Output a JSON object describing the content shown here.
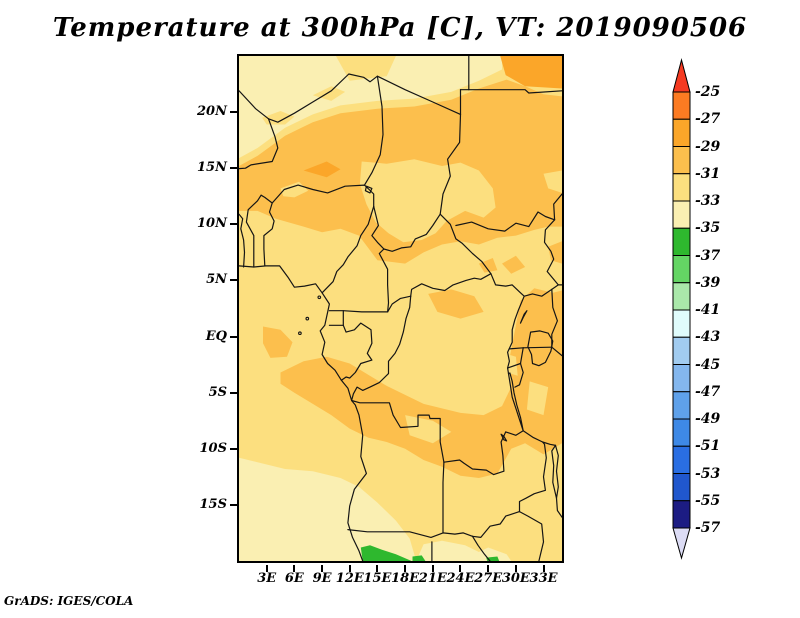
{
  "title": "Temperature at 300hPa [C], VT: 2019090506",
  "credit": "GrADS: IGES/COLA",
  "axes": {
    "y_tick_labels": [
      "20N",
      "15N",
      "10N",
      "5N",
      "EQ",
      "5S",
      "10S",
      "15S"
    ],
    "x_tick_labels": [
      "3E",
      "6E",
      "9E",
      "12E",
      "15E",
      "18E",
      "21E",
      "24E",
      "27E",
      "30E",
      "33E"
    ]
  },
  "colorbar": {
    "tick_labels": [
      "-25",
      "-27",
      "-29",
      "-31",
      "-33",
      "-35",
      "-37",
      "-39",
      "-41",
      "-43",
      "-45",
      "-47",
      "-49",
      "-51",
      "-53",
      "-55",
      "-57"
    ],
    "segment_colors": [
      "#fc7b22",
      "#fba629",
      "#fcbf4d",
      "#fcdf7f",
      "#faefb2",
      "#2eb82e",
      "#64d564",
      "#aae8aa",
      "#e0fcfc",
      "#a2ccf0",
      "#84b7ee",
      "#5fa1ea",
      "#3e89e6",
      "#2a6ee2",
      "#2057cd",
      "#1c1c83"
    ],
    "arrow_top_color": "#f53a21",
    "arrow_bottom_color": "#dcdcf5"
  },
  "map_colors": {
    "yellow": "#fcdf7f",
    "cream": "#faefb2",
    "orange": "#fcbf4d",
    "deep_orange": "#fba629",
    "green": "#2eb82e",
    "border": "#151515"
  },
  "chart_data": {
    "type": "heatmap",
    "title": "Temperature at 300hPa [C], VT: 2019090506",
    "variable": "Temperature",
    "level": "300hPa",
    "units": "C",
    "valid_time": "2019090506",
    "x_tick_labels": [
      "3E",
      "6E",
      "9E",
      "12E",
      "15E",
      "18E",
      "21E",
      "24E",
      "27E",
      "30E",
      "33E"
    ],
    "y_tick_labels": [
      "20N",
      "15N",
      "10N",
      "5N",
      "EQ",
      "5S",
      "10S",
      "15S"
    ],
    "contour_levels": [
      -25,
      -27,
      -29,
      -31,
      -33,
      -35,
      -37,
      -39,
      -41,
      -43,
      -45,
      -47,
      -49,
      -51,
      -53,
      -55,
      -57
    ],
    "legend_position": "right",
    "visible_value_range_note": "Map shows mostly -29 to -35 C (yellow/orange bands); small -35 to -37 C green pockets at the southern map edge near 13-20E and 27E"
  }
}
